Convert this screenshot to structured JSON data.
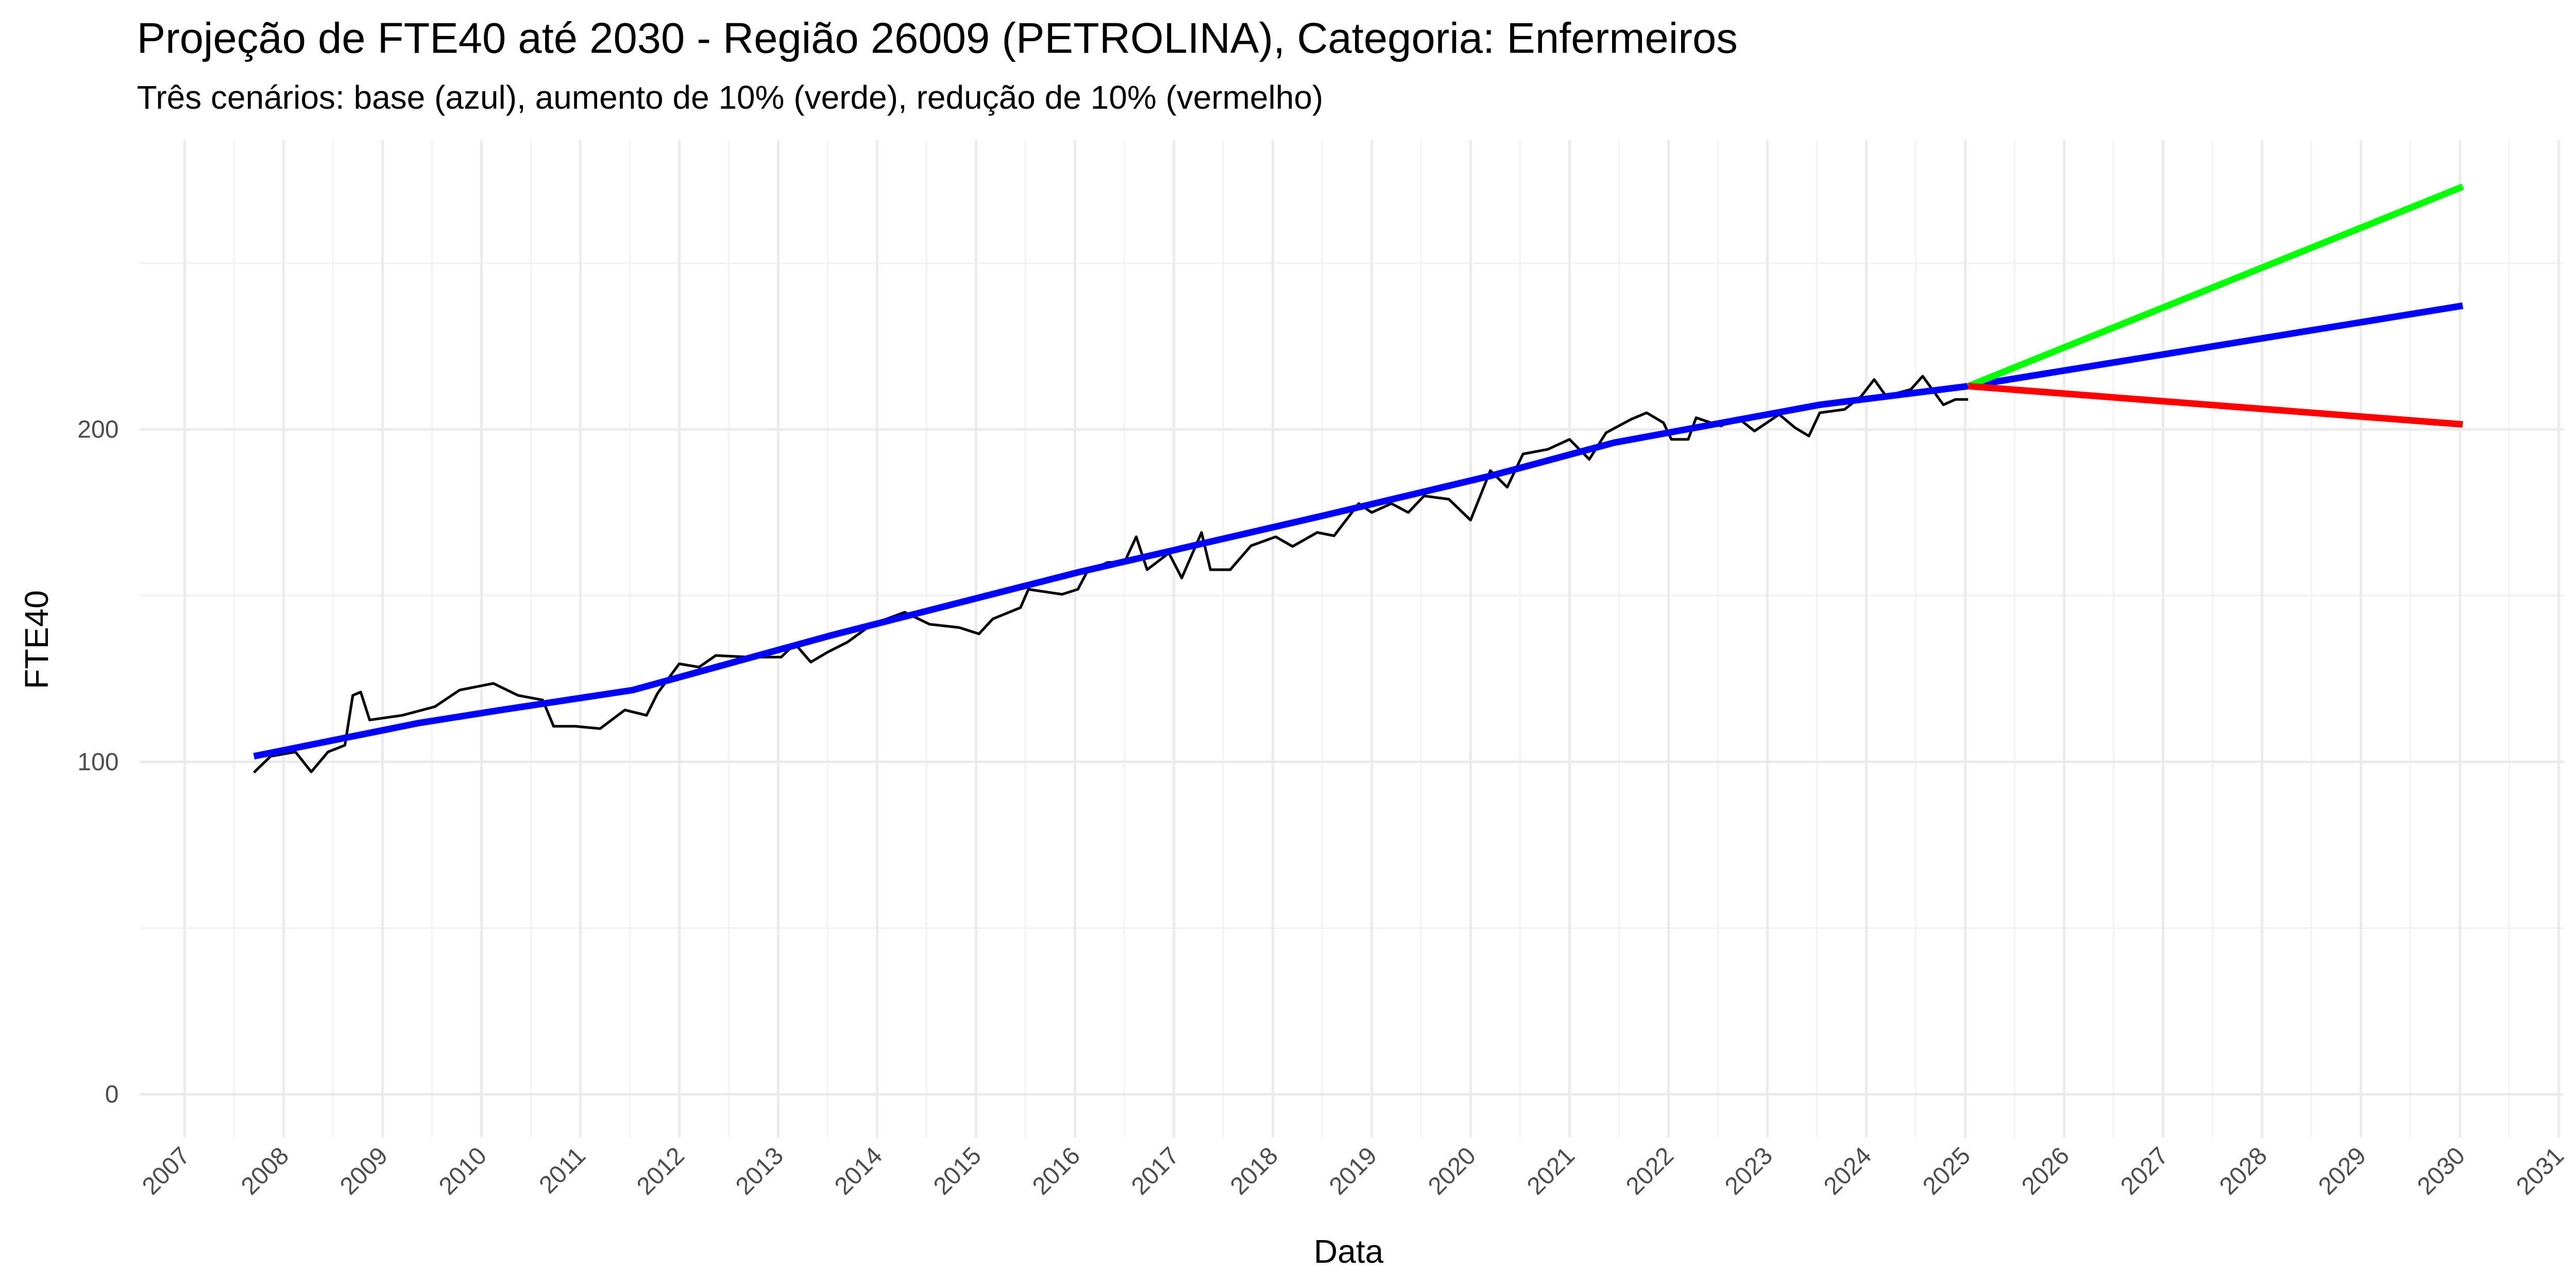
{
  "chart_data": {
    "type": "line",
    "title": "Projeção de FTE40 até 2030 - Região 26009 (PETROLINA), Categoria: Enfermeiros",
    "subtitle": "Três cenários: base (azul), aumento de 10% (verde), redução de 10% (vermelho)",
    "x_label": "Data",
    "y_label": "FTE40",
    "xlim": [
      2006.55,
      2031.05
    ],
    "ylim": [
      -13,
      287
    ],
    "xticks": [
      2007,
      2008,
      2009,
      2010,
      2011,
      2012,
      2013,
      2014,
      2015,
      2016,
      2017,
      2018,
      2019,
      2020,
      2021,
      2022,
      2023,
      2024,
      2025,
      2026,
      2027,
      2028,
      2029,
      2030,
      2031
    ],
    "yticks": [
      0,
      100,
      200
    ],
    "grid": true,
    "series": [
      {
        "color": "#000000",
        "width": 1.6,
        "x": [
          2007.7,
          2007.87,
          2008.12,
          2008.28,
          2008.45,
          2008.62,
          2008.7,
          2008.78,
          2008.87,
          2009.2,
          2009.53,
          2009.78,
          2010.12,
          2010.37,
          2010.62,
          2010.73,
          2010.95,
          2011.2,
          2011.45,
          2011.67,
          2011.78,
          2012.0,
          2012.2,
          2012.37,
          2012.7,
          2013.03,
          2013.17,
          2013.33,
          2013.5,
          2013.7,
          2013.95,
          2014.28,
          2014.53,
          2014.83,
          2015.03,
          2015.17,
          2015.45,
          2015.53,
          2015.87,
          2016.03,
          2016.12,
          2016.33,
          2016.5,
          2016.62,
          2016.73,
          2016.95,
          2017.08,
          2017.28,
          2017.37,
          2017.57,
          2017.78,
          2018.03,
          2018.2,
          2018.45,
          2018.62,
          2018.87,
          2019.0,
          2019.2,
          2019.37,
          2019.53,
          2019.78,
          2020.0,
          2020.2,
          2020.37,
          2020.53,
          2020.78,
          2021.0,
          2021.2,
          2021.37,
          2021.62,
          2021.78,
          2021.95,
          2022.03,
          2022.2,
          2022.28,
          2022.53,
          2022.7,
          2022.87,
          2023.12,
          2023.28,
          2023.42,
          2023.53,
          2023.78,
          2023.95,
          2024.08,
          2024.2,
          2024.45,
          2024.57,
          2024.78,
          2024.9,
          2025.03
        ],
        "values": [
          96.8,
          101.7,
          103,
          97,
          103,
          105,
          120,
          121,
          112.6,
          114,
          116.6,
          121.6,
          123.6,
          120,
          118.6,
          110.7,
          110.7,
          110,
          115.6,
          114,
          120.6,
          129.5,
          128.5,
          132,
          131.5,
          131.5,
          135.5,
          130,
          133,
          136,
          141.4,
          145,
          141.4,
          140.4,
          138.5,
          143,
          146.4,
          151.9,
          150.4,
          151.9,
          157,
          160,
          160,
          167.7,
          157.8,
          162.8,
          155.3,
          169,
          157.8,
          157.8,
          165,
          167.7,
          164.8,
          169,
          168,
          177.7,
          175,
          177.7,
          175,
          180,
          179,
          172.7,
          187.6,
          182.6,
          192.6,
          194,
          197,
          191,
          199,
          203,
          205,
          202,
          197,
          197,
          203.5,
          201,
          203.5,
          199.5,
          204.5,
          200.5,
          198,
          205,
          206,
          210,
          215,
          210,
          212,
          216,
          207.4,
          209,
          209
        ]
      },
      {
        "color": "#0000ff",
        "width": 4,
        "x": [
          2007.7,
          2009.37,
          2010.2,
          2011.53,
          2013.53,
          2016.03,
          2018.53,
          2020.2,
          2021.45,
          2023.53,
          2025.03
        ],
        "values": [
          101.7,
          111.7,
          115.6,
          121.6,
          138,
          157,
          174.2,
          186,
          196,
          207.4,
          213
        ]
      },
      {
        "color": "#0000ff",
        "width": 4,
        "x": [
          2025.03,
          2030.03
        ],
        "values": [
          213,
          237.2
        ]
      },
      {
        "color": "#00ff00",
        "width": 4,
        "x": [
          2025.03,
          2030.03
        ],
        "values": [
          213,
          273
        ]
      },
      {
        "color": "#ff0000",
        "width": 4,
        "x": [
          2025.03,
          2030.03
        ],
        "values": [
          213,
          201.5
        ]
      }
    ]
  }
}
